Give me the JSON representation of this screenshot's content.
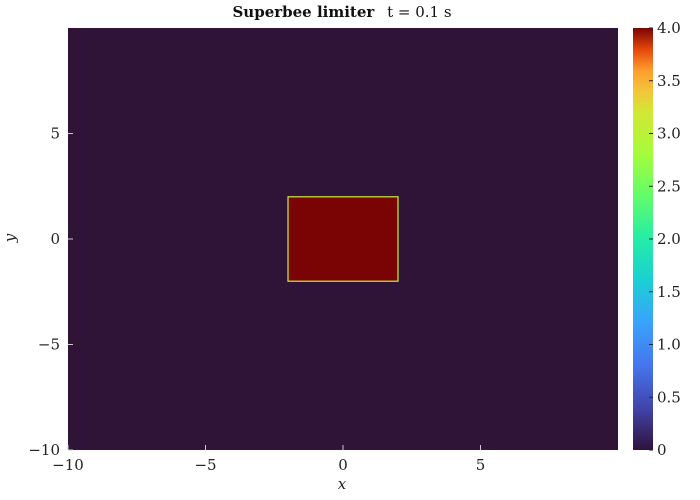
{
  "chart_data": {
    "type": "heatmap",
    "title_bold": "Superbee limiter",
    "title_rest": "t = 0.1 s",
    "xlabel": "x",
    "ylabel": "y",
    "xlim": [
      -10,
      10
    ],
    "ylim": [
      -10,
      10
    ],
    "x_ticks": [
      -10,
      -5,
      0,
      5
    ],
    "x_tick_labels": [
      "−10",
      "−5",
      "0",
      "5"
    ],
    "y_ticks": [
      -10,
      -5,
      0,
      5
    ],
    "y_tick_labels": [
      "−10",
      "−5",
      "0",
      "5"
    ],
    "background_value": 0,
    "background_color": "#301437",
    "region": {
      "x_range": [
        -2,
        2
      ],
      "y_range": [
        -2,
        2
      ],
      "value": 4.0,
      "fill_color": "#7a0403",
      "edge_color": "#c8f03c"
    },
    "colorbar": {
      "colormap": "turbo",
      "range": [
        0,
        4
      ],
      "ticks": [
        0,
        0.5,
        1.0,
        1.5,
        2.0,
        2.5,
        3.0,
        3.5,
        4.0
      ],
      "tick_labels": [
        "0",
        "0.5",
        "1.0",
        "1.5",
        "2.0",
        "2.5",
        "3.0",
        "3.5",
        "4.0"
      ]
    },
    "grid": false
  }
}
